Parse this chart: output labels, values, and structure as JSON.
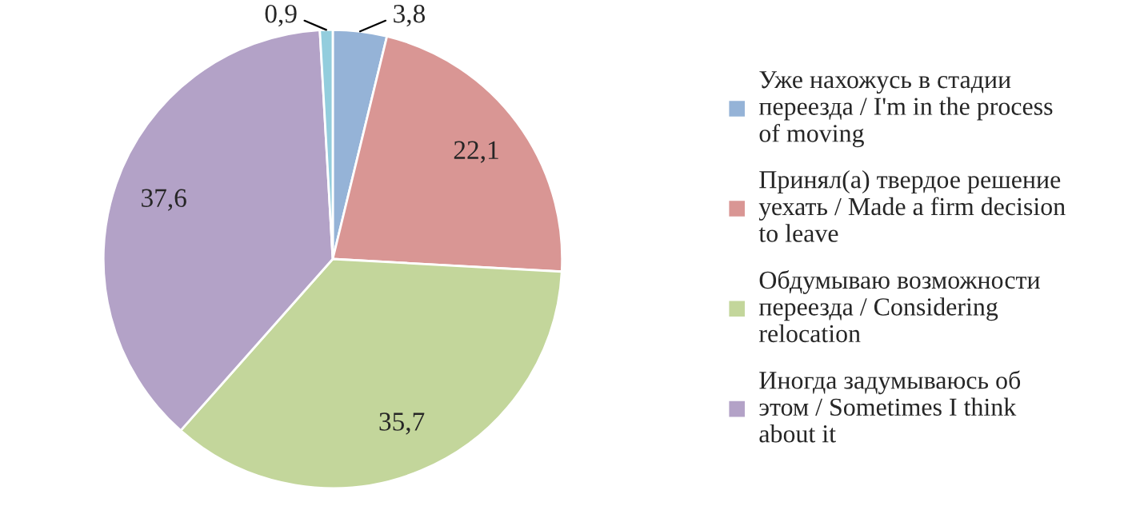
{
  "chart_data": {
    "type": "pie",
    "categories": [
      "Уже нахожусь в стадии\nпереезда / I'm in the process\nof moving",
      "Принял(а) твердое решение\nуехать / Made a firm decision\nto leave",
      "Обдумываю возможности\nпереезда / Considering\nrelocation",
      "Иногда задумываюсь об\nэтом / Sometimes I think\nabout it",
      null
    ],
    "values": [
      3.8,
      22.1,
      35.7,
      37.6,
      0.9
    ],
    "value_labels": [
      "3,8",
      "22,1",
      "35,7",
      "37,6",
      "0,9"
    ],
    "colors": [
      "#95b3d7",
      "#d99694",
      "#c3d69b",
      "#b3a2c7",
      "#93cddd"
    ],
    "legend": "right"
  }
}
